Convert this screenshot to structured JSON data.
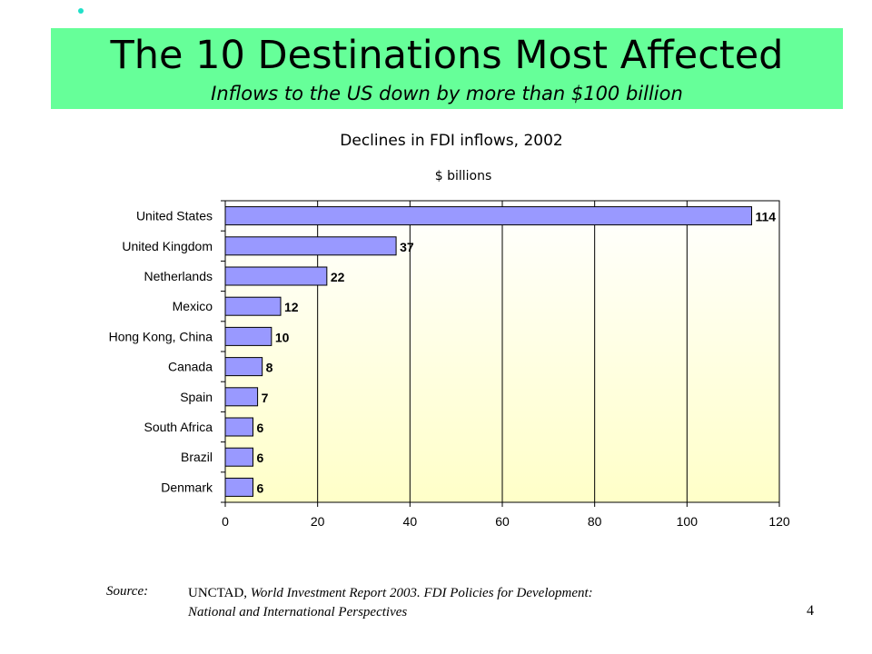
{
  "slide": {
    "title": "The 10 Destinations Most Affected",
    "subtitle": "Inflows to the US down by more than $100 billion",
    "page_number": "4"
  },
  "source": {
    "label": "Source:",
    "org": "UNCTAD,",
    "report_line1": "World Investment Report 2003.  FDI Policies for Development:",
    "report_line2": "National and International Perspectives"
  },
  "colors": {
    "title_band": "#66ff99",
    "bar_fill": "#9999ff",
    "bullet": "#20e0c8"
  },
  "chart_data": {
    "type": "bar",
    "orientation": "horizontal",
    "title": "Declines in FDI inflows, 2002",
    "unit_label": "$ billions",
    "categories": [
      "United States",
      "United Kingdom",
      "Netherlands",
      "Mexico",
      "Hong Kong, China",
      "Canada",
      "Spain",
      "South Africa",
      "Brazil",
      "Denmark"
    ],
    "values": [
      114,
      37,
      22,
      12,
      10,
      8,
      7,
      6,
      6,
      6
    ],
    "xlim": [
      0,
      120
    ],
    "xticks": [
      0,
      20,
      40,
      60,
      80,
      100,
      120
    ],
    "grid": true,
    "data_labels": true
  }
}
